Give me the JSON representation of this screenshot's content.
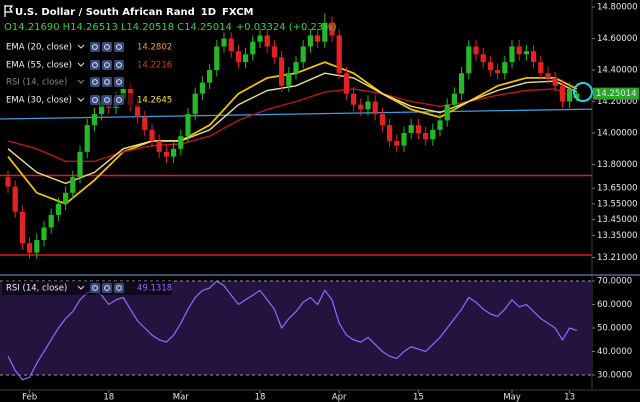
{
  "chart_data": [
    {
      "type": "candlestick",
      "title": "U.S. Dollar / South African Rand",
      "interval": "1D",
      "source": "FXCM",
      "ohlc_legend": [
        "O14.21690",
        "H14.26513",
        "L14.20518",
        "C14.25014"
      ],
      "change": "+0.03324 (+0.23%)",
      "open": [
        13.72,
        13.66,
        13.5,
        13.3,
        13.24,
        13.32,
        13.4,
        13.48,
        13.55,
        13.62,
        13.72,
        13.88,
        14.05,
        14.12,
        14.2,
        14.16,
        14.22,
        14.28,
        14.18,
        14.1,
        14.02,
        13.95,
        13.88,
        13.85,
        13.9,
        13.98,
        14.12,
        14.25,
        14.32,
        14.4,
        14.55,
        14.6,
        14.52,
        14.45,
        14.5,
        14.58,
        14.62,
        14.55,
        14.48,
        14.3,
        14.38,
        14.45,
        14.55,
        14.62,
        14.58,
        14.7,
        14.62,
        14.38,
        14.25,
        14.18,
        14.15,
        14.2,
        14.12,
        14.05,
        13.95,
        13.92,
        14.0,
        14.05,
        14.0,
        13.96,
        14.02,
        14.08,
        14.18,
        14.25,
        14.38,
        14.55,
        14.5,
        14.45,
        14.4,
        14.38,
        14.45,
        14.55,
        14.5,
        14.52,
        14.45,
        14.38,
        14.35,
        14.3,
        14.2,
        14.22
      ],
      "high": [
        13.76,
        13.7,
        13.54,
        13.34,
        13.36,
        13.44,
        13.52,
        13.59,
        13.66,
        13.76,
        13.92,
        14.09,
        14.16,
        14.24,
        14.24,
        14.26,
        14.32,
        14.32,
        14.22,
        14.14,
        14.06,
        13.99,
        13.92,
        13.94,
        14.02,
        14.16,
        14.29,
        14.36,
        14.44,
        14.59,
        14.64,
        14.64,
        14.56,
        14.54,
        14.62,
        14.66,
        14.66,
        14.59,
        14.52,
        14.42,
        14.49,
        14.59,
        14.66,
        14.66,
        14.76,
        14.74,
        14.66,
        14.42,
        14.29,
        14.22,
        14.24,
        14.24,
        14.16,
        14.09,
        13.99,
        14.04,
        14.09,
        14.09,
        14.04,
        14.06,
        14.12,
        14.22,
        14.29,
        14.42,
        14.59,
        14.59,
        14.54,
        14.49,
        14.44,
        14.49,
        14.59,
        14.59,
        14.56,
        14.56,
        14.49,
        14.42,
        14.39,
        14.34,
        14.32,
        14.27
      ],
      "low": [
        13.62,
        13.46,
        13.26,
        13.2,
        13.2,
        13.28,
        13.36,
        13.44,
        13.51,
        13.58,
        13.68,
        13.84,
        14.01,
        14.08,
        14.12,
        14.12,
        14.18,
        14.14,
        14.06,
        13.98,
        13.91,
        13.84,
        13.81,
        13.81,
        13.86,
        13.94,
        14.08,
        14.21,
        14.28,
        14.36,
        14.51,
        14.48,
        14.41,
        14.41,
        14.46,
        14.54,
        14.51,
        14.44,
        14.26,
        14.26,
        14.34,
        14.41,
        14.51,
        14.54,
        14.54,
        14.58,
        14.34,
        14.21,
        14.14,
        14.11,
        14.11,
        14.08,
        14.01,
        13.91,
        13.88,
        13.88,
        13.96,
        13.96,
        13.92,
        13.92,
        13.98,
        14.04,
        14.14,
        14.21,
        14.34,
        14.46,
        14.41,
        14.36,
        14.34,
        14.34,
        14.41,
        14.46,
        14.46,
        14.41,
        14.34,
        14.31,
        14.26,
        14.16,
        14.16,
        14.2
      ],
      "close": [
        13.66,
        13.5,
        13.3,
        13.24,
        13.32,
        13.4,
        13.48,
        13.55,
        13.62,
        13.72,
        13.88,
        14.05,
        14.12,
        14.2,
        14.16,
        14.22,
        14.28,
        14.18,
        14.1,
        14.02,
        13.95,
        13.88,
        13.85,
        13.9,
        13.98,
        14.12,
        14.25,
        14.32,
        14.4,
        14.55,
        14.6,
        14.52,
        14.45,
        14.5,
        14.58,
        14.62,
        14.55,
        14.48,
        14.3,
        14.38,
        14.45,
        14.55,
        14.62,
        14.58,
        14.7,
        14.62,
        14.38,
        14.25,
        14.18,
        14.15,
        14.2,
        14.12,
        14.05,
        13.95,
        13.92,
        14.0,
        14.05,
        14.0,
        13.96,
        14.02,
        14.08,
        14.18,
        14.25,
        14.38,
        14.55,
        14.5,
        14.45,
        14.4,
        14.38,
        14.45,
        14.55,
        14.5,
        14.52,
        14.45,
        14.38,
        14.35,
        14.3,
        14.2,
        14.28,
        14.25
      ],
      "color_up": "#26b826",
      "color_down": "#e52222",
      "overlays": [
        {
          "name": "EMA (20, close)",
          "value": 14.2802,
          "color": "#f2c200",
          "value_color": "#ff9a1a",
          "x": [
            0,
            4,
            8,
            12,
            16,
            20,
            24,
            28,
            32,
            36,
            40,
            44,
            48,
            52,
            56,
            60,
            64,
            68,
            72,
            76,
            79
          ],
          "values": [
            13.85,
            13.62,
            13.55,
            13.7,
            13.88,
            13.95,
            13.95,
            14.05,
            14.25,
            14.35,
            14.38,
            14.45,
            14.38,
            14.25,
            14.15,
            14.1,
            14.2,
            14.3,
            14.35,
            14.35,
            14.28
          ]
        },
        {
          "name": "EMA (55, close)",
          "value": 14.2216,
          "color": "#b8161c",
          "value_color": "#e03030",
          "x": [
            0,
            4,
            8,
            12,
            16,
            20,
            24,
            28,
            32,
            36,
            40,
            44,
            48,
            52,
            56,
            60,
            64,
            68,
            72,
            76,
            79
          ],
          "values": [
            13.95,
            13.9,
            13.82,
            13.82,
            13.88,
            13.92,
            13.93,
            13.98,
            14.08,
            14.15,
            14.2,
            14.26,
            14.28,
            14.25,
            14.2,
            14.17,
            14.2,
            14.24,
            14.27,
            14.28,
            14.22
          ]
        },
        {
          "name": "EMA (30, close)",
          "value": 14.2645,
          "color": "#efe08a",
          "value_color": "#ffe24a",
          "x": [
            0,
            4,
            8,
            12,
            16,
            20,
            24,
            28,
            32,
            36,
            40,
            44,
            48,
            52,
            56,
            60,
            64,
            68,
            72,
            76,
            79
          ],
          "values": [
            13.9,
            13.75,
            13.68,
            13.75,
            13.9,
            13.95,
            13.95,
            14.02,
            14.18,
            14.27,
            14.3,
            14.38,
            14.35,
            14.25,
            14.17,
            14.13,
            14.2,
            14.27,
            14.32,
            14.33,
            14.26
          ]
        }
      ],
      "hidden_indicator": "RSI (14, close)",
      "hlines": [
        {
          "value": 13.73,
          "color": "#e01818"
        },
        {
          "value": 13.225,
          "color": "#e01818"
        }
      ],
      "trendline": {
        "x": [
          0,
          79
        ],
        "values": [
          14.09,
          14.15
        ],
        "color": "#3aa0e0"
      },
      "last_price": 14.25014,
      "last_price_color": "#2aa52a",
      "ylim": [
        13.117,
        14.845
      ],
      "yticks": [
        {
          "value": 14.8,
          "label": "14.80000"
        },
        {
          "value": 14.6,
          "label": "14.60000"
        },
        {
          "value": 14.4,
          "label": "14.40000"
        },
        {
          "value": 14.2,
          "label": "14.20000"
        },
        {
          "value": 14.0,
          "label": "14.00000"
        },
        {
          "value": 13.8,
          "label": "13.80000"
        },
        {
          "value": 13.65,
          "label": "13.65000"
        },
        {
          "value": 13.55,
          "label": "13.55000"
        },
        {
          "value": 13.45,
          "label": "13.45000"
        },
        {
          "value": 13.35,
          "label": "13.35000"
        },
        {
          "value": 13.21,
          "label": "13.21000"
        }
      ],
      "xticks": [
        {
          "value": 3,
          "label": "Feb"
        },
        {
          "value": 14,
          "label": "18"
        },
        {
          "value": 24,
          "label": "Mar"
        },
        {
          "value": 35,
          "label": "18"
        },
        {
          "value": 46,
          "label": "Apr"
        },
        {
          "value": 57,
          "label": "15"
        },
        {
          "value": 70,
          "label": "May"
        },
        {
          "value": 78,
          "label": "13"
        }
      ]
    },
    {
      "type": "line",
      "name": "RSI (14, close)",
      "value": 49.1318,
      "color": "#8f6bff",
      "band_color": "#24123f",
      "values": [
        38,
        32,
        28,
        29,
        35,
        40,
        45,
        50,
        54,
        57,
        62,
        65,
        66,
        64,
        60,
        62,
        63,
        58,
        53,
        50,
        47,
        45,
        44,
        47,
        52,
        58,
        63,
        66,
        67,
        70,
        68,
        64,
        60,
        62,
        64,
        66,
        62,
        58,
        50,
        54,
        57,
        61,
        63,
        60,
        66,
        62,
        52,
        47,
        45,
        44,
        46,
        43,
        40,
        38,
        37,
        40,
        42,
        41,
        40,
        43,
        46,
        50,
        54,
        58,
        63,
        61,
        58,
        56,
        55,
        58,
        62,
        59,
        60,
        57,
        54,
        52,
        50,
        45,
        50,
        49
      ],
      "band": [
        30,
        70
      ],
      "ylim": [
        23.6,
        71.3
      ],
      "yticks": [
        {
          "value": 70,
          "label": "70.0000"
        },
        {
          "value": 60,
          "label": "60.0000"
        },
        {
          "value": 50,
          "label": "50.0000"
        },
        {
          "value": 40,
          "label": "40.0000"
        },
        {
          "value": 30,
          "label": "30.0000"
        }
      ]
    }
  ]
}
